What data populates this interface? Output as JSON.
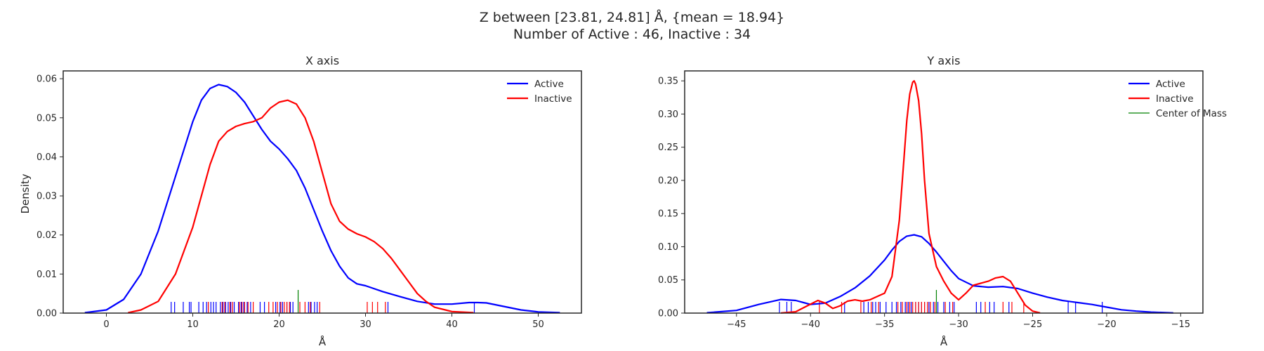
{
  "figure": {
    "title_line1": "Z between [23.81, 24.81] Å, {mean = 18.94}",
    "title_line2": "Number of Active : 46, Inactive : 34"
  },
  "colors": {
    "active": "#0000ff",
    "inactive": "#ff0000",
    "center_of_mass": "#008000",
    "axes": "#262626"
  },
  "chart_data": [
    {
      "type": "line",
      "title": "X axis",
      "xlabel": "Å",
      "ylabel": "Density",
      "xlim": [
        -5,
        55
      ],
      "ylim": [
        0,
        0.062
      ],
      "xticks": [
        "0",
        "10",
        "20",
        "30",
        "40",
        "50"
      ],
      "yticks": [
        "0.00",
        "0.01",
        "0.02",
        "0.03",
        "0.04",
        "0.05",
        "0.06"
      ],
      "grid": false,
      "legend_position": "top-right",
      "legend": [
        "Active",
        "Inactive"
      ],
      "series": [
        {
          "name": "Active",
          "color": "#0000ff",
          "x": [
            -2.5,
            0,
            2,
            4,
            6,
            8,
            10,
            11,
            12,
            13,
            14,
            15,
            16,
            17,
            18,
            19,
            20,
            21,
            22,
            23,
            24,
            25,
            26,
            27,
            28,
            29,
            30,
            32,
            34,
            36,
            38,
            40,
            42,
            43,
            44,
            46,
            48,
            50,
            52.5
          ],
          "y": [
            0.0001,
            0.0008,
            0.0035,
            0.01,
            0.021,
            0.035,
            0.049,
            0.0545,
            0.0575,
            0.0585,
            0.058,
            0.0565,
            0.054,
            0.0505,
            0.047,
            0.044,
            0.042,
            0.0395,
            0.0365,
            0.032,
            0.0265,
            0.021,
            0.016,
            0.012,
            0.009,
            0.0075,
            0.007,
            0.0055,
            0.0042,
            0.003,
            0.0023,
            0.0023,
            0.0027,
            0.0027,
            0.0026,
            0.0017,
            0.0008,
            0.0003,
            0.0001
          ]
        },
        {
          "name": "Inactive",
          "color": "#ff0000",
          "x": [
            2.5,
            4,
            6,
            8,
            10,
            11,
            12,
            13,
            14,
            15,
            16,
            17,
            18,
            19,
            20,
            21,
            22,
            23,
            24,
            25,
            26,
            27,
            28,
            29,
            30,
            31,
            32,
            33,
            34,
            35,
            36,
            37,
            38,
            40,
            42.5
          ],
          "y": [
            0.0001,
            0.0008,
            0.003,
            0.01,
            0.022,
            0.03,
            0.038,
            0.044,
            0.0465,
            0.0478,
            0.0485,
            0.049,
            0.05,
            0.0525,
            0.054,
            0.0545,
            0.0535,
            0.05,
            0.044,
            0.036,
            0.028,
            0.0235,
            0.0215,
            0.0203,
            0.0195,
            0.0183,
            0.0165,
            0.014,
            0.011,
            0.008,
            0.005,
            0.003,
            0.0015,
            0.0004,
            0.0001
          ]
        }
      ],
      "rug": {
        "active": [
          7.5,
          7.9,
          8.9,
          9.6,
          9.8,
          10.7,
          11.2,
          11.6,
          12.1,
          12.4,
          12.7,
          13.2,
          13.5,
          13.8,
          14.1,
          14.4,
          14.8,
          15.3,
          15.6,
          15.9,
          16.3,
          16.7,
          17.8,
          18.3,
          19.6,
          20.1,
          20.4,
          20.9,
          21.3,
          21.6,
          23.4,
          23.7,
          24.1,
          24.4,
          32.6,
          42.6
        ],
        "inactive": [
          11.8,
          13.4,
          13.7,
          14.3,
          14.6,
          15.4,
          15.7,
          16.0,
          16.4,
          17.0,
          18.8,
          19.3,
          19.8,
          20.2,
          20.6,
          20.9,
          21.2,
          22.4,
          23.0,
          23.6,
          24.7,
          30.2,
          30.8,
          31.4,
          32.3
        ],
        "center_of_mass": [
          22.2
        ]
      }
    },
    {
      "type": "line",
      "title": "Y axis",
      "xlabel": "Å",
      "ylabel": "",
      "xlim": [
        -48.5,
        -13.5
      ],
      "ylim": [
        0,
        0.365
      ],
      "xticks": [
        "−45",
        "−40",
        "−35",
        "−30",
        "−25",
        "−20",
        "−15"
      ],
      "yticks": [
        "0.00",
        "0.05",
        "0.10",
        "0.15",
        "0.20",
        "0.25",
        "0.30",
        "0.35"
      ],
      "grid": false,
      "legend_position": "top-right",
      "legend": [
        "Active",
        "Inactive",
        "Center of Mass"
      ],
      "series": [
        {
          "name": "Active",
          "color": "#0000ff",
          "x": [
            -47,
            -45,
            -43.5,
            -42,
            -41,
            -40,
            -39,
            -38,
            -37,
            -36,
            -35,
            -34.5,
            -34,
            -33.5,
            -33,
            -32.5,
            -32,
            -31.5,
            -31,
            -30.5,
            -30,
            -29,
            -28,
            -27,
            -26,
            -25,
            -24,
            -23,
            -22,
            -21,
            -20,
            -19,
            -18,
            -17,
            -15.5
          ],
          "y": [
            0.0005,
            0.004,
            0.013,
            0.0205,
            0.019,
            0.013,
            0.015,
            0.025,
            0.038,
            0.056,
            0.08,
            0.095,
            0.108,
            0.116,
            0.118,
            0.115,
            0.105,
            0.092,
            0.078,
            0.064,
            0.052,
            0.041,
            0.039,
            0.04,
            0.037,
            0.03,
            0.024,
            0.019,
            0.016,
            0.013,
            0.009,
            0.005,
            0.003,
            0.0015,
            0.0003
          ]
        },
        {
          "name": "Inactive",
          "color": "#ff0000",
          "x": [
            -42,
            -41,
            -40.3,
            -39.5,
            -39,
            -38.5,
            -38,
            -37.5,
            -37,
            -36.5,
            -36,
            -35.5,
            -35,
            -34.5,
            -34,
            -33.7,
            -33.5,
            -33.3,
            -33.1,
            -33,
            -32.9,
            -32.7,
            -32.5,
            -32.3,
            -32,
            -31.5,
            -31,
            -30.5,
            -30,
            -29.5,
            -29,
            -28.5,
            -28,
            -27.5,
            -27,
            -26.5,
            -26,
            -25.5,
            -25,
            -24.5
          ],
          "y": [
            0.0002,
            0.002,
            0.01,
            0.019,
            0.015,
            0.007,
            0.011,
            0.018,
            0.02,
            0.018,
            0.02,
            0.025,
            0.03,
            0.055,
            0.14,
            0.23,
            0.29,
            0.33,
            0.348,
            0.35,
            0.345,
            0.32,
            0.27,
            0.2,
            0.12,
            0.07,
            0.048,
            0.03,
            0.02,
            0.03,
            0.042,
            0.045,
            0.048,
            0.053,
            0.055,
            0.048,
            0.03,
            0.012,
            0.003,
            0.0003
          ]
        }
      ],
      "rug": {
        "active": [
          -42.1,
          -41.6,
          -41.3,
          -37.7,
          -36.4,
          -36.1,
          -35.8,
          -35.6,
          -35.3,
          -34.9,
          -34.5,
          -34.2,
          -33.9,
          -33.6,
          -33.4,
          -33.2,
          -32.9,
          -32.7,
          -32.5,
          -32.3,
          -32.0,
          -31.7,
          -31.4,
          -31.0,
          -30.6,
          -30.3,
          -28.8,
          -28.5,
          -27.9,
          -27.6,
          -26.6,
          -22.6,
          -22.1,
          -20.3
        ],
        "inactive": [
          -39.4,
          -37.9,
          -36.6,
          -35.9,
          -35.4,
          -34.1,
          -33.8,
          -33.5,
          -33.3,
          -33.1,
          -32.9,
          -32.7,
          -32.5,
          -32.3,
          -32.1,
          -31.9,
          -31.6,
          -30.9,
          -30.4,
          -28.2,
          -27.0,
          -26.4,
          -25.6
        ],
        "center_of_mass": [
          -31.5
        ]
      }
    }
  ]
}
